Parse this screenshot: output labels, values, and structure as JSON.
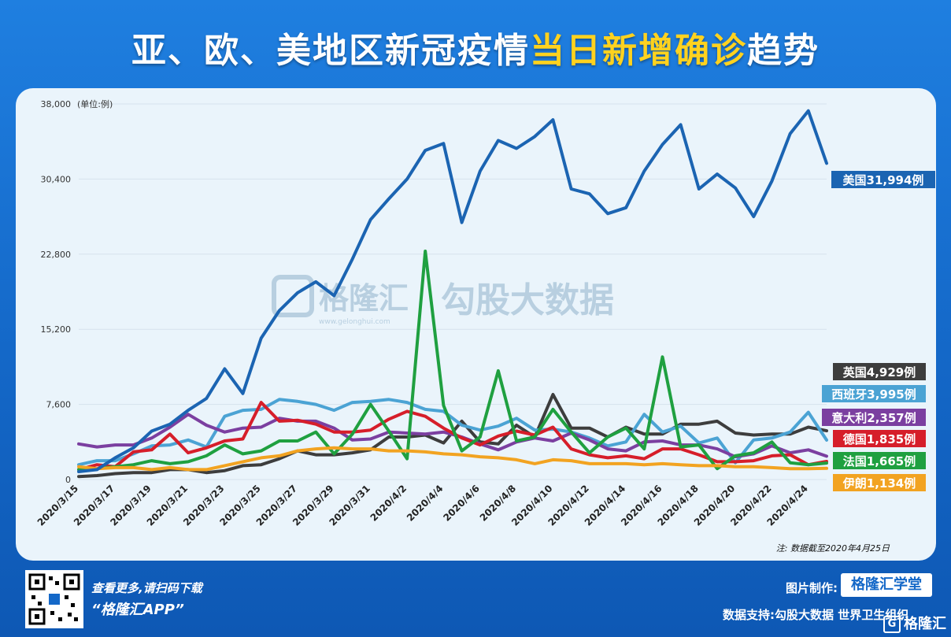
{
  "title": {
    "part1": "亚、欧、美地区新冠疫情",
    "highlight": "当日新增确诊",
    "part2": "趋势"
  },
  "chart_data": {
    "type": "line",
    "ylabel": "(单位:例)",
    "ylim": [
      0,
      38000
    ],
    "yticks": [
      0,
      7600,
      15200,
      22800,
      30400,
      38000
    ],
    "ytick_labels": [
      "0",
      "7,600",
      "15,200",
      "22,800",
      "30,400",
      "38,000"
    ],
    "x": [
      "2020/3/15",
      "2020/3/16",
      "2020/3/17",
      "2020/3/18",
      "2020/3/19",
      "2020/3/20",
      "2020/3/21",
      "2020/3/22",
      "2020/3/23",
      "2020/3/24",
      "2020/3/25",
      "2020/3/26",
      "2020/3/27",
      "2020/3/28",
      "2020/3/29",
      "2020/3/30",
      "2020/3/31",
      "2020/4/1",
      "2020/4/2",
      "2020/4/3",
      "2020/4/4",
      "2020/4/5",
      "2020/4/6",
      "2020/4/7",
      "2020/4/8",
      "2020/4/9",
      "2020/4/10",
      "2020/4/11",
      "2020/4/12",
      "2020/4/13",
      "2020/4/14",
      "2020/4/15",
      "2020/4/16",
      "2020/4/17",
      "2020/4/18",
      "2020/4/19",
      "2020/4/20",
      "2020/4/21",
      "2020/4/22",
      "2020/4/23",
      "2020/4/24",
      "2020/4/25"
    ],
    "xtick_labels": [
      "2020/3/15",
      "2020/3/17",
      "2020/3/19",
      "2020/3/21",
      "2020/3/23",
      "2020/3/25",
      "2020/3/27",
      "2020/3/29",
      "2020/3/31",
      "2020/4/2",
      "2020/4/4",
      "2020/4/6",
      "2020/4/8",
      "2020/4/10",
      "2020/4/12",
      "2020/4/14",
      "2020/4/16",
      "2020/4/18",
      "2020/4/20",
      "2020/4/22",
      "2020/4/24"
    ],
    "series": [
      {
        "name": "英国",
        "color": "#3d3d3d",
        "end_label": "英国4,929例",
        "values": [
          300,
          400,
          600,
          700,
          700,
          1000,
          1000,
          700,
          900,
          1400,
          1500,
          2100,
          2900,
          2500,
          2500,
          2700,
          3000,
          4300,
          4300,
          4500,
          3700,
          5900,
          3800,
          3600,
          5500,
          4300,
          8600,
          5200,
          5200,
          4300,
          5300,
          4600,
          4600,
          5600,
          5600,
          5900,
          4700,
          4500,
          4600,
          4600,
          5300,
          4929
        ]
      },
      {
        "name": "西班牙",
        "color": "#4ba3d4",
        "end_label": "西班牙3,995例",
        "values": [
          1500,
          1900,
          1900,
          2600,
          3400,
          3500,
          4000,
          3300,
          6400,
          7000,
          7100,
          8100,
          7900,
          7600,
          7000,
          7800,
          7900,
          8100,
          7800,
          7100,
          6900,
          5500,
          5000,
          5400,
          6200,
          5000,
          5100,
          4800,
          4200,
          3400,
          3800,
          6600,
          4800,
          5400,
          3700,
          4200,
          1700,
          4000,
          4200,
          4800,
          6800,
          3995
        ]
      },
      {
        "name": "意大利",
        "color": "#7b3fa0",
        "end_label": "意大利2,357例",
        "values": [
          3600,
          3300,
          3500,
          3500,
          4200,
          5300,
          6600,
          5500,
          4800,
          5200,
          5300,
          6200,
          5900,
          5900,
          5200,
          4000,
          4100,
          4800,
          4700,
          4600,
          4800,
          4300,
          3600,
          3000,
          3800,
          4200,
          3900,
          4700,
          4000,
          3100,
          2900,
          3800,
          3900,
          3500,
          3500,
          3100,
          2300,
          2600,
          3400,
          2700,
          3000,
          2357
        ]
      },
      {
        "name": "德国",
        "color": "#d61e2a",
        "end_label": "德国1,835例",
        "values": [
          1000,
          1500,
          1300,
          2800,
          3000,
          4600,
          2700,
          3200,
          3900,
          4100,
          7800,
          5900,
          6000,
          5600,
          4800,
          4800,
          5000,
          6100,
          6900,
          6400,
          5200,
          4200,
          3500,
          4400,
          4900,
          4500,
          5300,
          3100,
          2500,
          2200,
          2400,
          2100,
          3100,
          3100,
          2500,
          1800,
          1800,
          1900,
          2400,
          2500,
          1500,
          1835
        ]
      },
      {
        "name": "法国",
        "color": "#1fa040",
        "end_label": "法国1,665例",
        "values": [
          1000,
          1100,
          1300,
          1500,
          1900,
          1600,
          1800,
          2400,
          3500,
          2600,
          2900,
          3900,
          3900,
          4800,
          2600,
          4600,
          7600,
          4900,
          2100,
          23100,
          7500,
          2900,
          4300,
          11000,
          3900,
          4300,
          7100,
          4800,
          2700,
          4300,
          5200,
          3100,
          12400,
          3300,
          3500,
          1100,
          2400,
          2700,
          3800,
          1700,
          1500,
          1665
        ]
      },
      {
        "name": "伊朗",
        "color": "#f2a321",
        "end_label": "伊朗1,134例",
        "values": [
          1300,
          1100,
          1200,
          1200,
          1000,
          1200,
          1000,
          1000,
          1400,
          1800,
          2200,
          2400,
          2900,
          3100,
          3200,
          3100,
          3100,
          2900,
          2900,
          2800,
          2600,
          2500,
          2300,
          2200,
          2000,
          1600,
          2000,
          1900,
          1600,
          1600,
          1600,
          1500,
          1600,
          1500,
          1400,
          1400,
          1300,
          1300,
          1200,
          1100,
          1100,
          1134
        ]
      },
      {
        "name": "美国",
        "color": "#1b64b2",
        "end_label": "美国31,994例",
        "values": [
          800,
          1000,
          2200,
          3200,
          4900,
          5600,
          7000,
          8200,
          11200,
          8700,
          14300,
          17100,
          18900,
          20000,
          18600,
          22300,
          26300,
          28400,
          30400,
          33300,
          34000,
          26000,
          31200,
          34300,
          33500,
          34700,
          36400,
          29400,
          28900,
          26900,
          27500,
          31200,
          33900,
          35900,
          29400,
          30900,
          29500,
          26600,
          30200,
          35000,
          37300,
          31994
        ]
      }
    ]
  },
  "annotation_note": "注: 数据截至2020年4月25日",
  "watermark": {
    "brand": "格隆汇",
    "url": "www.gelonghui.com",
    "partner": "勾股大数据"
  },
  "footer": {
    "scan_text": "查看更多,请扫码下载",
    "app_name": "“格隆汇APP”",
    "made_by_label": "图片制作:",
    "made_by_brand": "格隆汇学堂",
    "data_support": "数据支持:勾股大数据  世界卫生组织",
    "corner_logo": "格隆汇"
  }
}
